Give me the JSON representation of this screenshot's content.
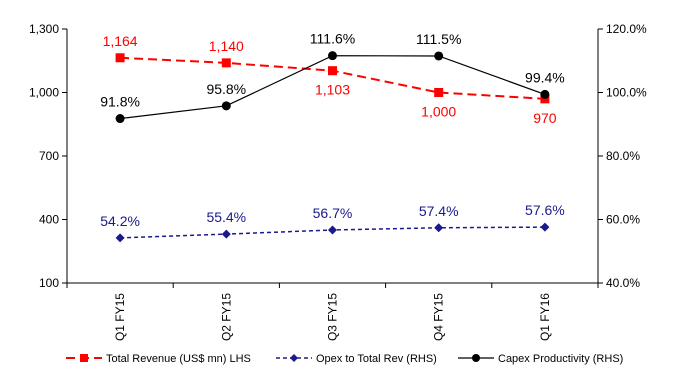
{
  "chart_data": {
    "type": "line",
    "categories": [
      "Q1 FY15",
      "Q2 FY15",
      "Q3 FY15",
      "Q4 FY15",
      "Q1 FY16"
    ],
    "y_left": {
      "min": 100,
      "max": 1300,
      "ticks": [
        "100",
        "400",
        "700",
        "1,000",
        "1,300"
      ]
    },
    "y_right": {
      "min": 40,
      "max": 120,
      "ticks": [
        "40.0%",
        "60.0%",
        "80.0%",
        "100.0%",
        "120.0%"
      ]
    },
    "series": [
      {
        "name": "Total Revenue (US$ mn) LHS",
        "axis": "left",
        "color": "#ff0000",
        "line_style": "dashed",
        "marker": "square",
        "values": [
          1164,
          1140,
          1103,
          1000,
          970
        ],
        "labels": [
          "1,164",
          "1,140",
          "1,103",
          "1,000",
          "970"
        ],
        "label_pos": [
          "above",
          "above",
          "below",
          "below",
          "below"
        ]
      },
      {
        "name": "Opex to Total Rev (RHS)",
        "axis": "right",
        "color": "#1a1a8c",
        "line_style": "dotted",
        "marker": "diamond",
        "values": [
          54.2,
          55.4,
          56.7,
          57.4,
          57.6
        ],
        "labels": [
          "54.2%",
          "55.4%",
          "56.7%",
          "57.4%",
          "57.6%"
        ],
        "label_pos": [
          "above",
          "above",
          "above",
          "above",
          "above"
        ]
      },
      {
        "name": "Capex Productivity (RHS)",
        "axis": "right",
        "color": "#000000",
        "line_style": "solid",
        "marker": "circle",
        "values": [
          91.8,
          95.8,
          111.6,
          111.5,
          99.4
        ],
        "labels": [
          "91.8%",
          "95.8%",
          "111.6%",
          "111.5%",
          "99.4%"
        ],
        "label_pos": [
          "above",
          "above",
          "above",
          "above",
          "above"
        ]
      }
    ],
    "legend": {
      "position": "bottom"
    },
    "grid": false
  }
}
